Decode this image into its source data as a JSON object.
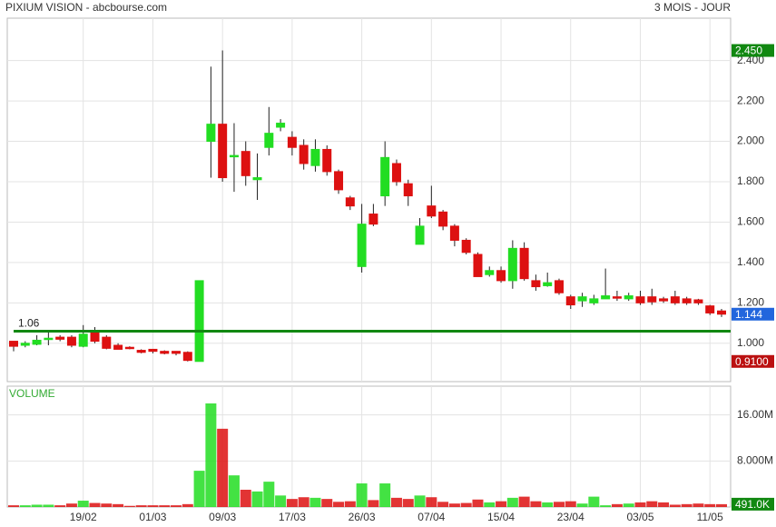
{
  "chart_data": [
    {
      "type": "candlestick",
      "title": "PIXIUM VISION - abcbourse.com",
      "subtitle": "3 MOIS - JOUR",
      "open": [
        1.01,
        0.99,
        0.995,
        1.02,
        1.03,
        1.03,
        0.985,
        1.06,
        1.03,
        0.99,
        0.98,
        0.965,
        0.97,
        0.96,
        0.96,
        0.955,
        0.91,
        2.0,
        2.085,
        1.93,
        1.95,
        1.81,
        1.97,
        2.07,
        2.02,
        1.98,
        1.88,
        1.96,
        1.85,
        1.72,
        1.38,
        1.64,
        1.73,
        1.89,
        1.79,
        1.49,
        1.68,
        1.65,
        1.58,
        1.51,
        1.44,
        1.34,
        1.36,
        1.31,
        1.47,
        1.31,
        1.285,
        1.31,
        1.23,
        1.21,
        1.2,
        1.22,
        1.23,
        1.22,
        1.23,
        1.23,
        1.22,
        1.23,
        1.22,
        1.215,
        1.185,
        1.16
      ],
      "high": [
        1.01,
        1.01,
        1.04,
        1.06,
        1.04,
        1.04,
        1.09,
        1.08,
        1.04,
        1.0,
        0.985,
        0.97,
        0.97,
        0.965,
        0.96,
        0.96,
        1.31,
        2.37,
        2.45,
        2.09,
        2.0,
        1.94,
        2.17,
        2.11,
        2.05,
        2.01,
        2.01,
        1.98,
        1.86,
        1.73,
        1.69,
        1.69,
        2.0,
        1.91,
        1.81,
        1.62,
        1.78,
        1.66,
        1.59,
        1.52,
        1.45,
        1.38,
        1.38,
        1.51,
        1.5,
        1.34,
        1.35,
        1.32,
        1.24,
        1.25,
        1.24,
        1.37,
        1.26,
        1.25,
        1.26,
        1.27,
        1.23,
        1.26,
        1.23,
        1.22,
        1.19,
        1.17
      ],
      "low": [
        0.96,
        0.98,
        0.99,
        0.99,
        1.01,
        0.98,
        0.98,
        1.0,
        0.97,
        0.97,
        0.97,
        0.95,
        0.95,
        0.945,
        0.94,
        0.91,
        0.91,
        1.82,
        1.8,
        1.75,
        1.78,
        1.71,
        1.93,
        2.05,
        1.93,
        1.86,
        1.85,
        1.83,
        1.74,
        1.66,
        1.35,
        1.58,
        1.68,
        1.78,
        1.68,
        1.49,
        1.62,
        1.56,
        1.48,
        1.44,
        1.33,
        1.33,
        1.3,
        1.27,
        1.31,
        1.26,
        1.28,
        1.24,
        1.17,
        1.18,
        1.19,
        1.22,
        1.21,
        1.21,
        1.19,
        1.19,
        1.2,
        1.19,
        1.19,
        1.19,
        1.14,
        1.13
      ],
      "close": [
        0.985,
        1.0,
        1.015,
        1.025,
        1.02,
        0.99,
        1.045,
        1.01,
        0.975,
        0.97,
        0.975,
        0.955,
        0.96,
        0.95,
        0.95,
        0.915,
        1.31,
        2.085,
        1.82,
        1.93,
        1.83,
        1.82,
        2.04,
        2.09,
        1.97,
        1.89,
        1.96,
        1.85,
        1.76,
        1.68,
        1.59,
        1.59,
        1.92,
        1.8,
        1.73,
        1.58,
        1.63,
        1.58,
        1.51,
        1.45,
        1.33,
        1.36,
        1.31,
        1.47,
        1.32,
        1.28,
        1.3,
        1.25,
        1.19,
        1.23,
        1.22,
        1.235,
        1.225,
        1.235,
        1.2,
        1.205,
        1.21,
        1.2,
        1.2,
        1.2,
        1.15,
        1.144
      ],
      "up_color": "#22dd22",
      "down_color": "#dd1111",
      "ylim": [
        0.81,
        2.61
      ],
      "yticks": [
        {
          "value": 1.0,
          "label": "1.000"
        },
        {
          "value": 1.2,
          "label": "1.200"
        },
        {
          "value": 1.4,
          "label": "1.400"
        },
        {
          "value": 1.6,
          "label": "1.600"
        },
        {
          "value": 1.8,
          "label": "1.800"
        },
        {
          "value": 2.0,
          "label": "2.000"
        },
        {
          "value": 2.2,
          "label": "2.200"
        },
        {
          "value": 2.4,
          "label": "2.400"
        }
      ],
      "hline": {
        "value": 1.06,
        "color": "#118811"
      },
      "markers": [
        {
          "value": 2.45,
          "label": "2.450",
          "color": "#118811"
        },
        {
          "value": 1.144,
          "label": "1.144",
          "color": "#2266dd"
        },
        {
          "value": 0.91,
          "label": "0.9100",
          "color": "#bb1111"
        }
      ],
      "grid": true
    },
    {
      "type": "volume",
      "title": "VOLUME",
      "categories": [
        null,
        null,
        null,
        null,
        null,
        null,
        "19/02",
        null,
        null,
        null,
        null,
        null,
        "01/03",
        null,
        null,
        null,
        null,
        null,
        "09/03",
        null,
        null,
        null,
        null,
        null,
        "17/03",
        null,
        null,
        null,
        null,
        null,
        "26/03",
        null,
        null,
        null,
        null,
        null,
        "07/04",
        null,
        null,
        null,
        null,
        null,
        "15/04",
        null,
        null,
        null,
        null,
        null,
        "23/04",
        null,
        null,
        null,
        null,
        null,
        "03/05",
        null,
        null,
        null,
        null,
        null,
        "11/05",
        null
      ],
      "values": [
        0.3,
        0.3,
        0.4,
        0.4,
        0.3,
        0.6,
        1.1,
        0.7,
        0.6,
        0.5,
        0.2,
        0.3,
        0.3,
        0.3,
        0.3,
        0.5,
        6.3,
        18.0,
        13.6,
        5.5,
        3.0,
        2.7,
        4.4,
        2.0,
        1.4,
        1.7,
        1.6,
        1.4,
        0.9,
        1.0,
        4.1,
        1.2,
        4.1,
        1.6,
        1.4,
        2.0,
        1.7,
        0.9,
        0.6,
        0.7,
        1.3,
        0.8,
        1.0,
        1.6,
        1.8,
        1.0,
        0.8,
        0.9,
        1.0,
        0.6,
        1.8,
        0.3,
        0.5,
        0.6,
        0.8,
        1.0,
        0.8,
        0.4,
        0.5,
        0.6,
        0.5,
        0.491
      ],
      "ylim": [
        0,
        21
      ],
      "yticks": [
        {
          "value": 8,
          "label": "8.000M"
        },
        {
          "value": 16,
          "label": "16.00M"
        }
      ],
      "markers": [
        {
          "value": 0.491,
          "label": "491.0K",
          "color": "#118811"
        }
      ],
      "grid": true
    }
  ]
}
